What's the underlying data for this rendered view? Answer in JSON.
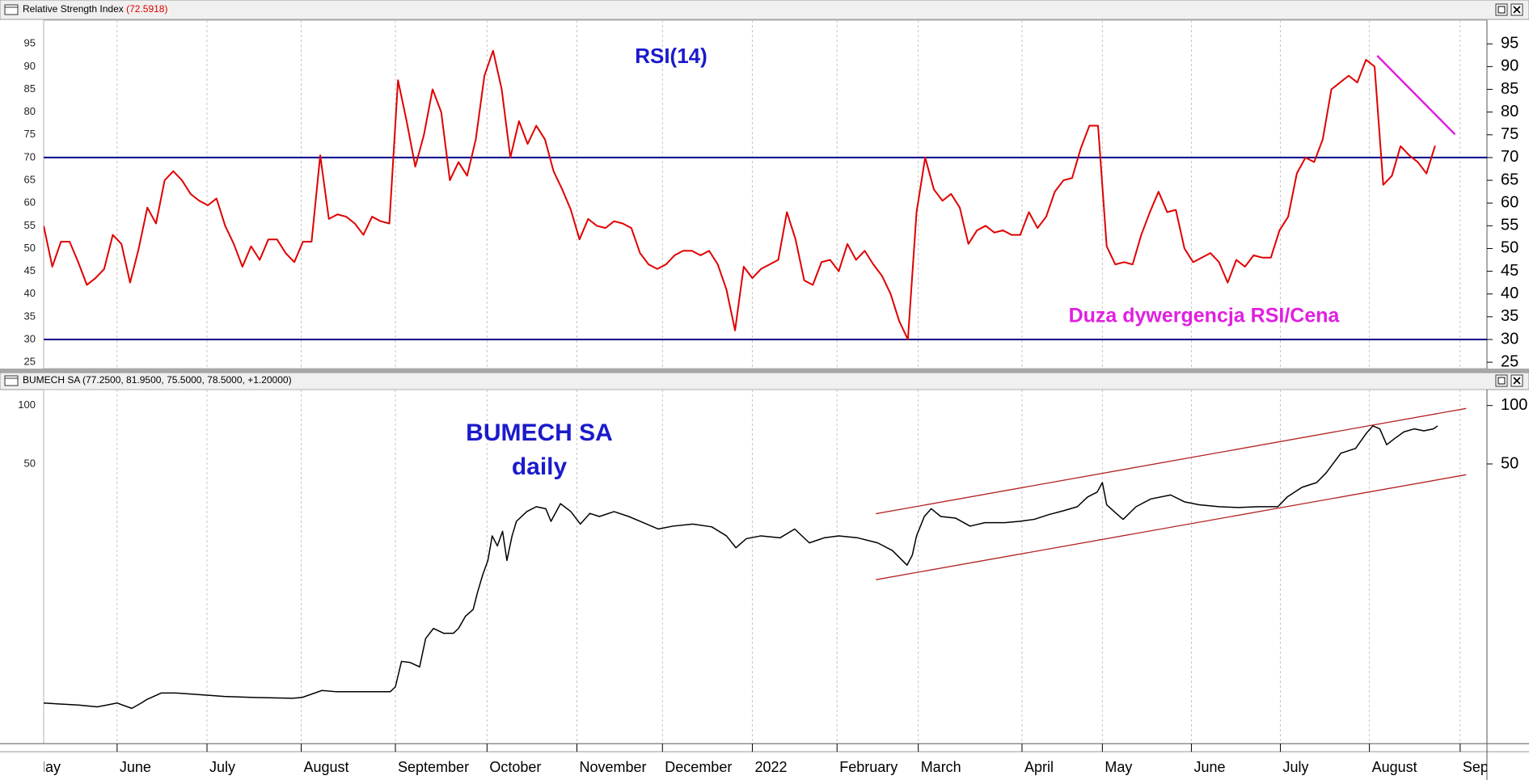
{
  "chart_data": [
    {
      "type": "line",
      "title": "Relative Strength Index",
      "title_value": "(72.5918)",
      "annotations": [
        {
          "text": "RSI(14)",
          "color": "#1a1acc"
        },
        {
          "text": "Duza dywergencja RSI/Cena",
          "color": "#e020e0"
        }
      ],
      "color": "#e00000",
      "values": [
        55,
        46,
        51.5,
        51.5,
        47,
        42,
        43.5,
        45.5,
        53,
        51,
        42.5,
        50,
        59,
        55.5,
        65,
        67,
        65,
        62,
        60.5,
        59.5,
        61,
        55,
        51,
        46,
        50.5,
        47.5,
        52,
        52,
        49,
        47,
        51.5,
        51.5,
        70.5,
        56.5,
        57.5,
        57,
        55.5,
        53,
        57,
        56,
        55.5,
        87,
        78,
        68,
        75,
        85,
        80,
        65,
        69,
        66,
        74,
        88,
        93.5,
        85,
        70,
        78,
        73,
        77,
        74,
        67,
        63,
        58.5,
        52,
        56.5,
        55,
        54.5,
        56,
        55.5,
        54.5,
        49,
        46.5,
        45.5,
        46.5,
        48.5,
        49.5,
        49.5,
        48.5,
        49.5,
        46.5,
        41,
        32,
        46,
        43.5,
        45.5,
        46.5,
        47.5,
        58,
        52,
        43,
        42,
        47,
        47.5,
        45,
        51,
        47.5,
        49.5,
        46.5,
        44,
        40,
        34,
        30,
        58,
        70,
        63,
        60.5,
        62,
        59,
        51,
        54,
        55,
        53.5,
        54,
        53,
        53,
        58,
        54.5,
        57,
        62.5,
        65,
        65.5,
        72,
        77,
        77,
        50.5,
        46.5,
        47,
        46.5,
        53,
        58,
        62.5,
        58,
        58.5,
        50,
        47,
        48,
        49,
        47,
        42.5,
        47.5,
        46,
        48.5,
        48,
        48,
        54,
        57,
        66.5,
        70,
        69,
        74,
        85,
        86.5,
        88,
        86.5,
        91.5,
        90,
        64,
        66,
        72.5,
        70.5,
        69,
        66.5,
        72.6
      ],
      "levels": [
        70,
        30
      ],
      "level_color": "#00008b",
      "trendlines": [
        {
          "color": "#e020e0",
          "points": [
            [
              154.3,
              92.4
            ],
            [
              163.3,
              75.1
            ]
          ]
        }
      ],
      "xlim": [
        0,
        167
      ],
      "ylim": [
        23.6,
        100.2
      ],
      "yticks": [
        25,
        30,
        35,
        40,
        45,
        50,
        55,
        60,
        65,
        70,
        75,
        80,
        85,
        90,
        95
      ]
    },
    {
      "type": "line",
      "title": "BUMECH SA (77.2500, 81.9500, 75.5000, 78.5000, +1.20000)",
      "annotations": [
        {
          "text": "BUMECH SA",
          "color": "#1a1acc"
        },
        {
          "text": "daily",
          "color": "#1a1acc"
        }
      ],
      "color": "#000000",
      "log_scale": true,
      "x": [
        0,
        1.7,
        4,
        6.2,
        8.5,
        10.2,
        11.3,
        11.9,
        13.6,
        15.3,
        17.5,
        20.9,
        24.3,
        28.8,
        29.9,
        32.2,
        33.9,
        36.7,
        40.1,
        40.7,
        41.4,
        42.4,
        43.5,
        44.2,
        45.1,
        46.3,
        47.4,
        48,
        48.8,
        49.7,
        50.2,
        50.8,
        51.4,
        51.9,
        52.5,
        53.1,
        53.6,
        54.2,
        54.7,
        55.9,
        57,
        58.1,
        58.7,
        59.8,
        61,
        62.1,
        63.2,
        64.3,
        66,
        67.7,
        69.4,
        71.1,
        72.8,
        75.1,
        77.3,
        79,
        80.1,
        81.3,
        83,
        85.2,
        86.9,
        88.6,
        90.3,
        92,
        94.2,
        96.5,
        98.2,
        99.9,
        100.5,
        101,
        101.9,
        102.7,
        103.8,
        105.5,
        107.2,
        108.9,
        111.2,
        112.9,
        114.6,
        116.3,
        118,
        119.6,
        120.8,
        121.9,
        122.5,
        123,
        124.1,
        124.9,
        126.4,
        128.1,
        130.4,
        132,
        133.7,
        136,
        138.3,
        140.5,
        142.8,
        143.9,
        145.6,
        147.3,
        148.4,
        150.1,
        151.8,
        153,
        153.8,
        154.6,
        155.4,
        156.3,
        157.4,
        158.6,
        159.7,
        160.8,
        161.3
      ],
      "values": [
        2.93,
        2.9,
        2.86,
        2.8,
        2.93,
        2.75,
        2.93,
        3.05,
        3.3,
        3.3,
        3.25,
        3.17,
        3.13,
        3.1,
        3.13,
        3.4,
        3.35,
        3.35,
        3.35,
        3.55,
        4.8,
        4.74,
        4.5,
        6.3,
        7.1,
        6.7,
        6.7,
        7.1,
        8.2,
        8.9,
        10.9,
        13.4,
        15.9,
        21.3,
        18.9,
        22.5,
        15.9,
        21.3,
        25.3,
        28.4,
        30.1,
        29.4,
        25.3,
        31.2,
        28.4,
        24.5,
        27.8,
        26.8,
        28.4,
        26.8,
        24.9,
        23.1,
        23.9,
        24.5,
        23.7,
        21.3,
        18.5,
        20.6,
        21.3,
        20.8,
        23.1,
        19.6,
        20.8,
        21.3,
        20.8,
        19.6,
        17.9,
        15.05,
        16.9,
        21.3,
        26.8,
        29.4,
        26.8,
        26.3,
        23.9,
        24.9,
        24.9,
        25.3,
        25.9,
        27.4,
        28.7,
        30.1,
        33.8,
        35.8,
        40.1,
        30.8,
        27.8,
        25.9,
        30.1,
        33.0,
        34.6,
        31.9,
        30.8,
        30.1,
        29.8,
        30.1,
        30.1,
        33.8,
        37.9,
        40.1,
        45.0,
        56.8,
        60.1,
        71.5,
        78.5,
        75.8,
        62.8,
        67.5,
        73.2,
        75.8,
        74.1,
        75.8,
        78.5
      ],
      "trendlines": [
        {
          "color": "#b22222",
          "points": [
            [
              96.3,
              27.7
            ],
            [
              164.6,
              96.6
            ]
          ]
        },
        {
          "color": "#b22222",
          "points": [
            [
              96.3,
              12.66
            ],
            [
              164.6,
              44.0
            ]
          ]
        }
      ],
      "xlim": [
        0,
        167
      ],
      "xticks": [
        {
          "value": -1.5,
          "label": "May"
        },
        {
          "value": 8.5,
          "label": "June"
        },
        {
          "value": 18.9,
          "label": "July"
        },
        {
          "value": 29.8,
          "label": "August"
        },
        {
          "value": 40.7,
          "label": "September"
        },
        {
          "value": 51.3,
          "label": "October"
        },
        {
          "value": 61.7,
          "label": "November"
        },
        {
          "value": 71.6,
          "label": "December"
        },
        {
          "value": 82,
          "label": "2022"
        },
        {
          "value": 91.8,
          "label": "February"
        },
        {
          "value": 101.2,
          "label": "March"
        },
        {
          "value": 113.2,
          "label": "April"
        },
        {
          "value": 122.5,
          "label": "May"
        },
        {
          "value": 132.8,
          "label": "June"
        },
        {
          "value": 143.1,
          "label": "July"
        },
        {
          "value": 153.4,
          "label": "August"
        },
        {
          "value": 163.9,
          "label": "Sep"
        }
      ],
      "ylim": [
        1.81,
        120.8
      ],
      "yticks": [
        50,
        100
      ]
    }
  ]
}
